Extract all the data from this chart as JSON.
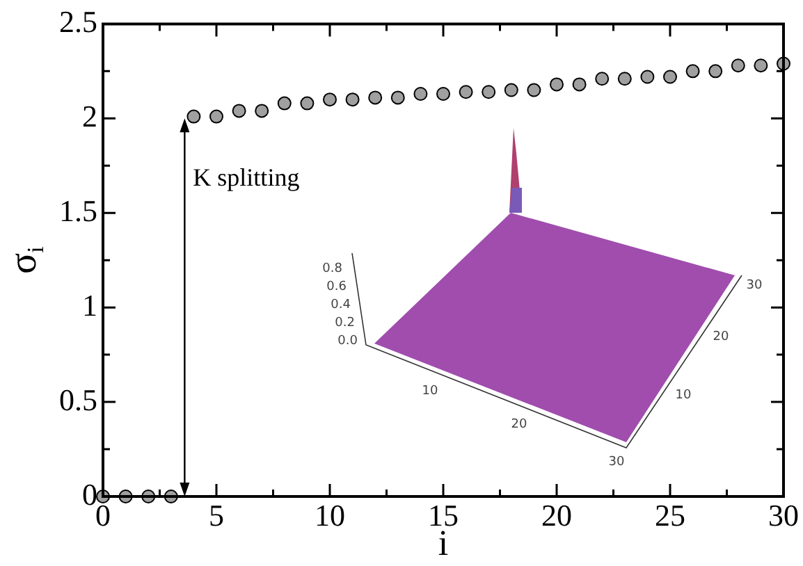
{
  "chart_data": {
    "type": "scatter",
    "xlabel": "i",
    "ylabel": "σ$_{i}$",
    "x": [
      0,
      1,
      2,
      3,
      4,
      5,
      6,
      7,
      8,
      9,
      10,
      11,
      12,
      13,
      14,
      15,
      16,
      17,
      18,
      19,
      20,
      21,
      22,
      23,
      24,
      25,
      26,
      27,
      28,
      29,
      30
    ],
    "series": [
      {
        "color": "#a0a0a0",
        "values": [
          0,
          0,
          0,
          0,
          2.01,
          2.01,
          2.04,
          2.04,
          2.08,
          2.08,
          2.1,
          2.1,
          2.11,
          2.11,
          2.13,
          2.13,
          2.14,
          2.14,
          2.15,
          2.15,
          2.18,
          2.18,
          2.21,
          2.21,
          2.22,
          2.22,
          2.25,
          2.25,
          2.28,
          2.28,
          2.29
        ]
      }
    ],
    "marker": "circle",
    "xlim": [
      0,
      30
    ],
    "ylim": [
      0,
      2.5
    ],
    "xticks": [
      0,
      {
        "value": 2.5,
        "label": null
      },
      5,
      {
        "value": 7.5,
        "label": null
      },
      10,
      {
        "value": 12.5,
        "label": null
      },
      15,
      {
        "value": 17.5,
        "label": null
      },
      20,
      {
        "value": 22.5,
        "label": null
      },
      25,
      {
        "value": 27.5,
        "label": null
      },
      30
    ],
    "yticks": [
      0,
      {
        "value": 0.25,
        "label": null
      },
      {
        "value": 0.5,
        "label": "0.5"
      },
      {
        "value": 0.75,
        "label": null
      },
      1,
      {
        "value": 1.25,
        "label": null
      },
      {
        "value": 1.5,
        "label": "1.5"
      },
      {
        "value": 1.75,
        "label": null
      },
      2,
      {
        "value": 2.25,
        "label": null
      },
      {
        "value": 2.5,
        "label": "2.5"
      }
    ],
    "grid": false,
    "legend": false,
    "annotations": [
      {
        "text": "K splitting",
        "x": 3.6,
        "y": 2.0
      },
      "0.0",
      "0.2",
      "0.4",
      "0.6",
      "0.8",
      "10",
      "20",
      "30",
      "10",
      "20",
      "30"
    ]
  }
}
